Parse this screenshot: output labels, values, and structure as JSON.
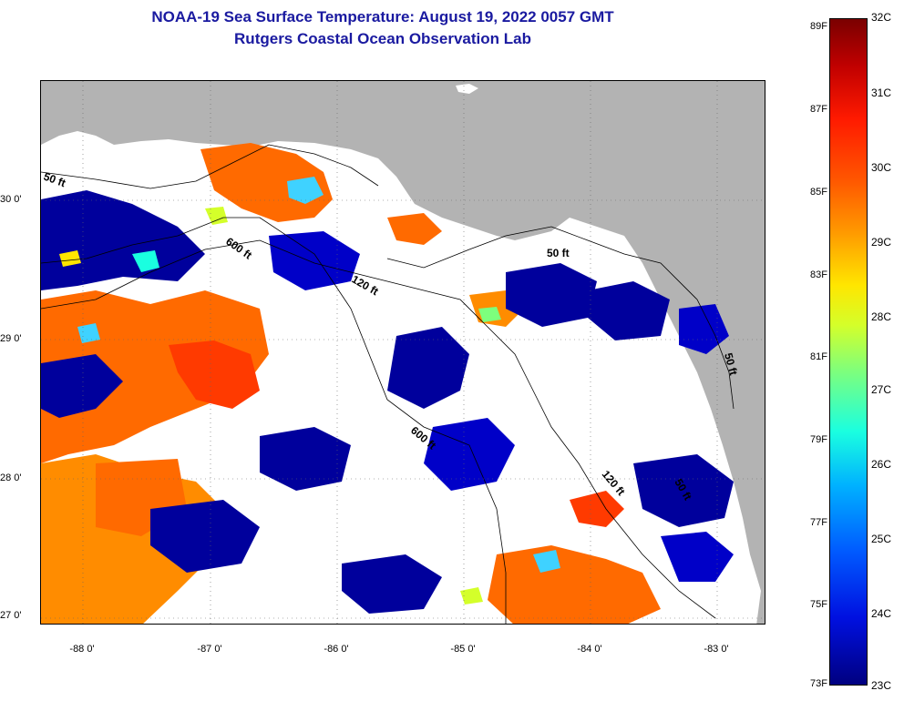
{
  "header": {
    "title": "NOAA-19 Sea Surface Temperature:  August 19, 2022 0057 GMT",
    "subtitle": "Rutgers Coastal Ocean Observation Lab"
  },
  "map": {
    "lat_labels": [
      "30 0'",
      "29 0'",
      "28 0'",
      "27 0'"
    ],
    "lon_labels": [
      "-88 0'",
      "-87 0'",
      "-86 0'",
      "-85 0'",
      "-84 0'",
      "-83 0'"
    ],
    "isobath_labels": [
      "50 ft",
      "600 ft",
      "120 ft",
      "50 ft",
      "600 ft",
      "120 ft",
      "50 ft",
      "50 ft"
    ],
    "colors": {
      "land": "#b3b3b3",
      "cloud": "#ffffff",
      "cold": "#00009c",
      "warm": "#ff6a00",
      "hot": "#ff3a00"
    }
  },
  "colorbar": {
    "fahrenheit": [
      "89F",
      "87F",
      "85F",
      "83F",
      "81F",
      "79F",
      "77F",
      "75F",
      "73F"
    ],
    "celsius": [
      "32C",
      "31C",
      "30C",
      "29C",
      "28C",
      "27C",
      "26C",
      "25C",
      "24C",
      "23C"
    ]
  }
}
